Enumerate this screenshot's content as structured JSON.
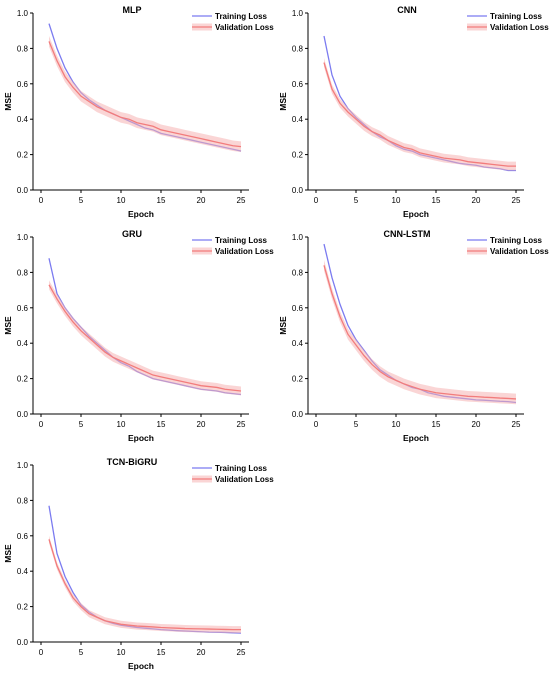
{
  "figure": {
    "colors": {
      "training": "#7b7bf0",
      "validation": "#f27c7c",
      "validation_band": "#f6b2b2",
      "axis": "#000000"
    }
  },
  "chart_data": [
    {
      "type": "line",
      "title": "MLP",
      "xlabel": "Epoch",
      "ylabel": "MSE",
      "xlim": [
        -1,
        26
      ],
      "ylim": [
        0,
        1.0
      ],
      "xticks": [
        0,
        5,
        10,
        15,
        20,
        25
      ],
      "yticks": [
        0.0,
        0.2,
        0.4,
        0.6,
        0.8,
        1.0
      ],
      "xtick_labels": [
        "0",
        "5",
        "10",
        "15",
        "20",
        "25"
      ],
      "ytick_labels": [
        "0.0",
        "0.2",
        "0.4",
        "0.6",
        "0.8",
        "1.0"
      ],
      "grid": false,
      "legend": "top-right",
      "x": [
        1,
        2,
        3,
        4,
        5,
        6,
        7,
        8,
        9,
        10,
        11,
        12,
        13,
        14,
        15,
        16,
        17,
        18,
        19,
        20,
        21,
        22,
        23,
        24,
        25
      ],
      "series": [
        {
          "name": "Training Loss",
          "values": [
            0.94,
            0.8,
            0.69,
            0.61,
            0.55,
            0.51,
            0.48,
            0.45,
            0.43,
            0.41,
            0.39,
            0.37,
            0.35,
            0.34,
            0.32,
            0.31,
            0.3,
            0.29,
            0.28,
            0.27,
            0.26,
            0.25,
            0.24,
            0.23,
            0.22
          ]
        },
        {
          "name": "Validation Loss",
          "values": [
            0.84,
            0.73,
            0.64,
            0.58,
            0.53,
            0.5,
            0.47,
            0.45,
            0.43,
            0.41,
            0.4,
            0.38,
            0.37,
            0.36,
            0.34,
            0.33,
            0.32,
            0.31,
            0.3,
            0.29,
            0.28,
            0.27,
            0.26,
            0.25,
            0.245
          ],
          "band": 0.03
        }
      ]
    },
    {
      "type": "line",
      "title": "CNN",
      "xlabel": "Epoch",
      "ylabel": "MSE",
      "xlim": [
        -1,
        26
      ],
      "ylim": [
        0,
        1.0
      ],
      "xticks": [
        0,
        5,
        10,
        15,
        20,
        25
      ],
      "yticks": [
        0.0,
        0.2,
        0.4,
        0.6,
        0.8,
        1.0
      ],
      "xtick_labels": [
        "0",
        "5",
        "10",
        "15",
        "20",
        "25"
      ],
      "ytick_labels": [
        "0.0",
        "0.2",
        "0.4",
        "0.6",
        "0.8",
        "1.0"
      ],
      "grid": false,
      "legend": "top-right",
      "x": [
        1,
        2,
        3,
        4,
        5,
        6,
        7,
        8,
        9,
        10,
        11,
        12,
        13,
        14,
        15,
        16,
        17,
        18,
        19,
        20,
        21,
        22,
        23,
        24,
        25
      ],
      "series": [
        {
          "name": "Training Loss",
          "values": [
            0.87,
            0.65,
            0.53,
            0.46,
            0.41,
            0.37,
            0.33,
            0.3,
            0.28,
            0.25,
            0.23,
            0.22,
            0.2,
            0.19,
            0.18,
            0.17,
            0.16,
            0.15,
            0.145,
            0.14,
            0.13,
            0.125,
            0.12,
            0.11,
            0.11
          ]
        },
        {
          "name": "Validation Loss",
          "values": [
            0.72,
            0.57,
            0.49,
            0.44,
            0.4,
            0.36,
            0.33,
            0.31,
            0.28,
            0.26,
            0.24,
            0.23,
            0.21,
            0.2,
            0.19,
            0.18,
            0.175,
            0.17,
            0.16,
            0.155,
            0.15,
            0.145,
            0.14,
            0.135,
            0.135
          ],
          "band": 0.025
        }
      ]
    },
    {
      "type": "line",
      "title": "GRU",
      "xlabel": "Epoch",
      "ylabel": "MSE",
      "xlim": [
        -1,
        26
      ],
      "ylim": [
        0,
        1.0
      ],
      "xticks": [
        0,
        5,
        10,
        15,
        20,
        25
      ],
      "yticks": [
        0.0,
        0.2,
        0.4,
        0.6,
        0.8,
        1.0
      ],
      "xtick_labels": [
        "0",
        "5",
        "10",
        "15",
        "20",
        "25"
      ],
      "ytick_labels": [
        "0.0",
        "0.2",
        "0.4",
        "0.6",
        "0.8",
        "1.0"
      ],
      "grid": false,
      "legend": "top-right",
      "x": [
        1,
        2,
        3,
        4,
        5,
        6,
        7,
        8,
        9,
        10,
        11,
        12,
        13,
        14,
        15,
        16,
        17,
        18,
        19,
        20,
        21,
        22,
        23,
        24,
        25
      ],
      "series": [
        {
          "name": "Training Loss",
          "values": [
            0.88,
            0.68,
            0.6,
            0.54,
            0.49,
            0.44,
            0.4,
            0.36,
            0.32,
            0.29,
            0.27,
            0.24,
            0.22,
            0.2,
            0.19,
            0.18,
            0.17,
            0.16,
            0.15,
            0.14,
            0.135,
            0.13,
            0.12,
            0.115,
            0.11
          ]
        },
        {
          "name": "Validation Loss",
          "values": [
            0.73,
            0.65,
            0.58,
            0.52,
            0.47,
            0.43,
            0.39,
            0.35,
            0.32,
            0.3,
            0.28,
            0.26,
            0.24,
            0.22,
            0.21,
            0.2,
            0.19,
            0.18,
            0.17,
            0.16,
            0.155,
            0.15,
            0.14,
            0.135,
            0.13
          ],
          "band": 0.025
        }
      ]
    },
    {
      "type": "line",
      "title": "CNN-LSTM",
      "xlabel": "Epoch",
      "ylabel": "MSE",
      "xlim": [
        -1,
        26
      ],
      "ylim": [
        0,
        1.0
      ],
      "xticks": [
        0,
        5,
        10,
        15,
        20,
        25
      ],
      "yticks": [
        0.0,
        0.2,
        0.4,
        0.6,
        0.8,
        1.0
      ],
      "xtick_labels": [
        "0",
        "5",
        "10",
        "15",
        "20",
        "25"
      ],
      "ytick_labels": [
        "0.0",
        "0.2",
        "0.4",
        "0.6",
        "0.8",
        "1.0"
      ],
      "grid": false,
      "legend": "top-right",
      "x": [
        1,
        2,
        3,
        4,
        5,
        6,
        7,
        8,
        9,
        10,
        11,
        12,
        13,
        14,
        15,
        16,
        17,
        18,
        19,
        20,
        21,
        22,
        23,
        24,
        25
      ],
      "series": [
        {
          "name": "Training Loss",
          "values": [
            0.96,
            0.77,
            0.62,
            0.5,
            0.42,
            0.36,
            0.3,
            0.25,
            0.22,
            0.19,
            0.17,
            0.15,
            0.14,
            0.12,
            0.11,
            0.1,
            0.095,
            0.09,
            0.085,
            0.08,
            0.078,
            0.075,
            0.072,
            0.07,
            0.065
          ]
        },
        {
          "name": "Validation Loss",
          "values": [
            0.84,
            0.68,
            0.55,
            0.45,
            0.39,
            0.33,
            0.28,
            0.24,
            0.21,
            0.19,
            0.17,
            0.155,
            0.14,
            0.13,
            0.12,
            0.115,
            0.11,
            0.105,
            0.1,
            0.098,
            0.095,
            0.093,
            0.09,
            0.088,
            0.085
          ],
          "band": 0.03
        }
      ]
    },
    {
      "type": "line",
      "title": "TCN-BiGRU",
      "xlabel": "Epoch",
      "ylabel": "MSE",
      "xlim": [
        -1,
        26
      ],
      "ylim": [
        0,
        1.0
      ],
      "xticks": [
        0,
        5,
        10,
        15,
        20,
        25
      ],
      "yticks": [
        0.0,
        0.2,
        0.4,
        0.6,
        0.8,
        1.0
      ],
      "xtick_labels": [
        "0",
        "5",
        "10",
        "15",
        "20",
        "25"
      ],
      "ytick_labels": [
        "0.0",
        "0.2",
        "0.4",
        "0.6",
        "0.8",
        "1.0"
      ],
      "grid": false,
      "legend": "top-right",
      "x": [
        1,
        2,
        3,
        4,
        5,
        6,
        7,
        8,
        9,
        10,
        11,
        12,
        13,
        14,
        15,
        16,
        17,
        18,
        19,
        20,
        21,
        22,
        23,
        24,
        25
      ],
      "series": [
        {
          "name": "Training Loss",
          "values": [
            0.77,
            0.5,
            0.37,
            0.28,
            0.21,
            0.17,
            0.14,
            0.12,
            0.105,
            0.095,
            0.088,
            0.082,
            0.078,
            0.074,
            0.07,
            0.067,
            0.064,
            0.062,
            0.06,
            0.058,
            0.056,
            0.055,
            0.054,
            0.052,
            0.05
          ]
        },
        {
          "name": "Validation Loss",
          "values": [
            0.58,
            0.43,
            0.33,
            0.25,
            0.2,
            0.16,
            0.14,
            0.12,
            0.11,
            0.1,
            0.095,
            0.09,
            0.088,
            0.085,
            0.082,
            0.08,
            0.078,
            0.076,
            0.075,
            0.074,
            0.073,
            0.072,
            0.071,
            0.07,
            0.07
          ],
          "band": 0.02
        }
      ]
    }
  ]
}
